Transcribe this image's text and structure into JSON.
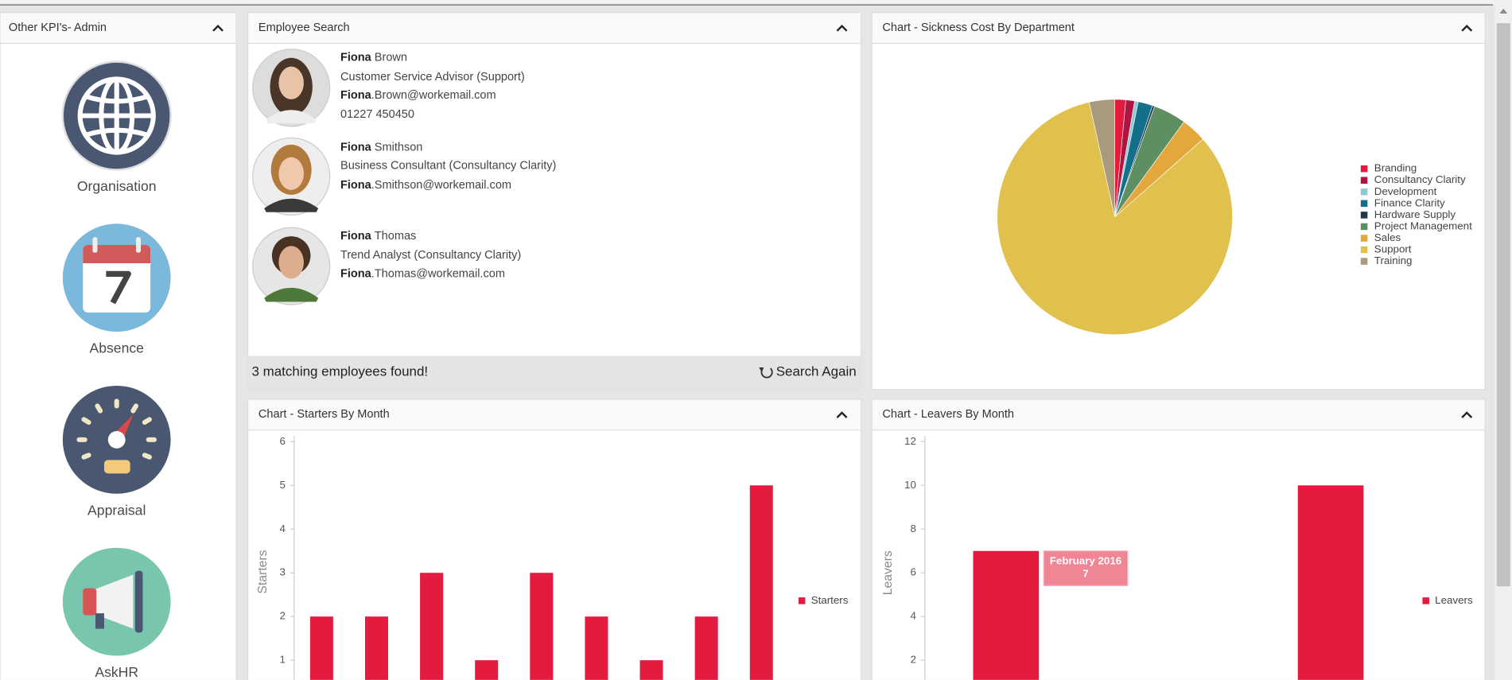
{
  "left_panel": {
    "title": "Other KPI's- Admin",
    "items": [
      "Organisation",
      "Absence",
      "Appraisal",
      "AskHR"
    ]
  },
  "employee_search": {
    "title": "Employee Search",
    "employees": [
      {
        "first_name": "Fiona",
        "last_name": "Brown",
        "role": "Customer Service Advisor (Support)",
        "email_name": "Fiona",
        "email_domain": ".Brown@workemail.com",
        "phone": "01227 450450"
      },
      {
        "first_name": "Fiona",
        "last_name": "Smithson",
        "role": "Business Consultant (Consultancy Clarity)",
        "email_name": "Fiona",
        "email_domain": ".Smithson@workemail.com"
      },
      {
        "first_name": "Fiona",
        "last_name": "Thomas",
        "role": "Trend Analyst (Consultancy Clarity)",
        "email_name": "Fiona",
        "email_domain": ".Thomas@workemail.com"
      }
    ],
    "result_text": "3 matching employees found!",
    "action": "Search Again"
  },
  "sickness_chart": {
    "title": "Chart - Sickness Cost By Department",
    "chart": {
      "type": "pie",
      "categories": [
        "Branding",
        "Consultancy Clarity",
        "Development",
        "Finance Clarity",
        "Hardware Supply",
        "Project Management",
        "Sales",
        "Support",
        "Training"
      ],
      "values": [
        1.5,
        1.2,
        0.5,
        2,
        0.3,
        4.5,
        3.5,
        83,
        3.5
      ],
      "colors": [
        "#e31b3f",
        "#b01440",
        "#8ecad6",
        "#12708a",
        "#1e3a4a",
        "#5d8f63",
        "#e3a73c",
        "#e0c14e",
        "#a89a7c"
      ],
      "legend": "right"
    }
  },
  "starters_chart": {
    "title": "Chart - Starters By Month",
    "chart": {
      "type": "bar",
      "series": [
        {
          "name": "Starters",
          "color": "#e31b3f",
          "values": [
            2,
            2,
            3,
            1,
            3,
            2,
            1,
            2,
            5
          ]
        }
      ],
      "ylabel": "Starters",
      "ylim": [
        0,
        6
      ],
      "yticks": [
        1,
        2,
        3,
        4,
        5,
        6
      ],
      "legend": "right"
    }
  },
  "leavers_chart": {
    "title": "Chart - Leavers By Month",
    "chart": {
      "type": "bar",
      "categories": [
        "February 2016",
        null,
        null
      ],
      "series": [
        {
          "name": "Leavers",
          "color": "#e31b3f",
          "values": [
            7,
            0,
            10
          ]
        }
      ],
      "ylabel": "Leavers",
      "ylim": [
        0,
        12
      ],
      "yticks": [
        2,
        4,
        6,
        8,
        10,
        12
      ],
      "legend": "right",
      "tooltip_index": 0
    }
  }
}
